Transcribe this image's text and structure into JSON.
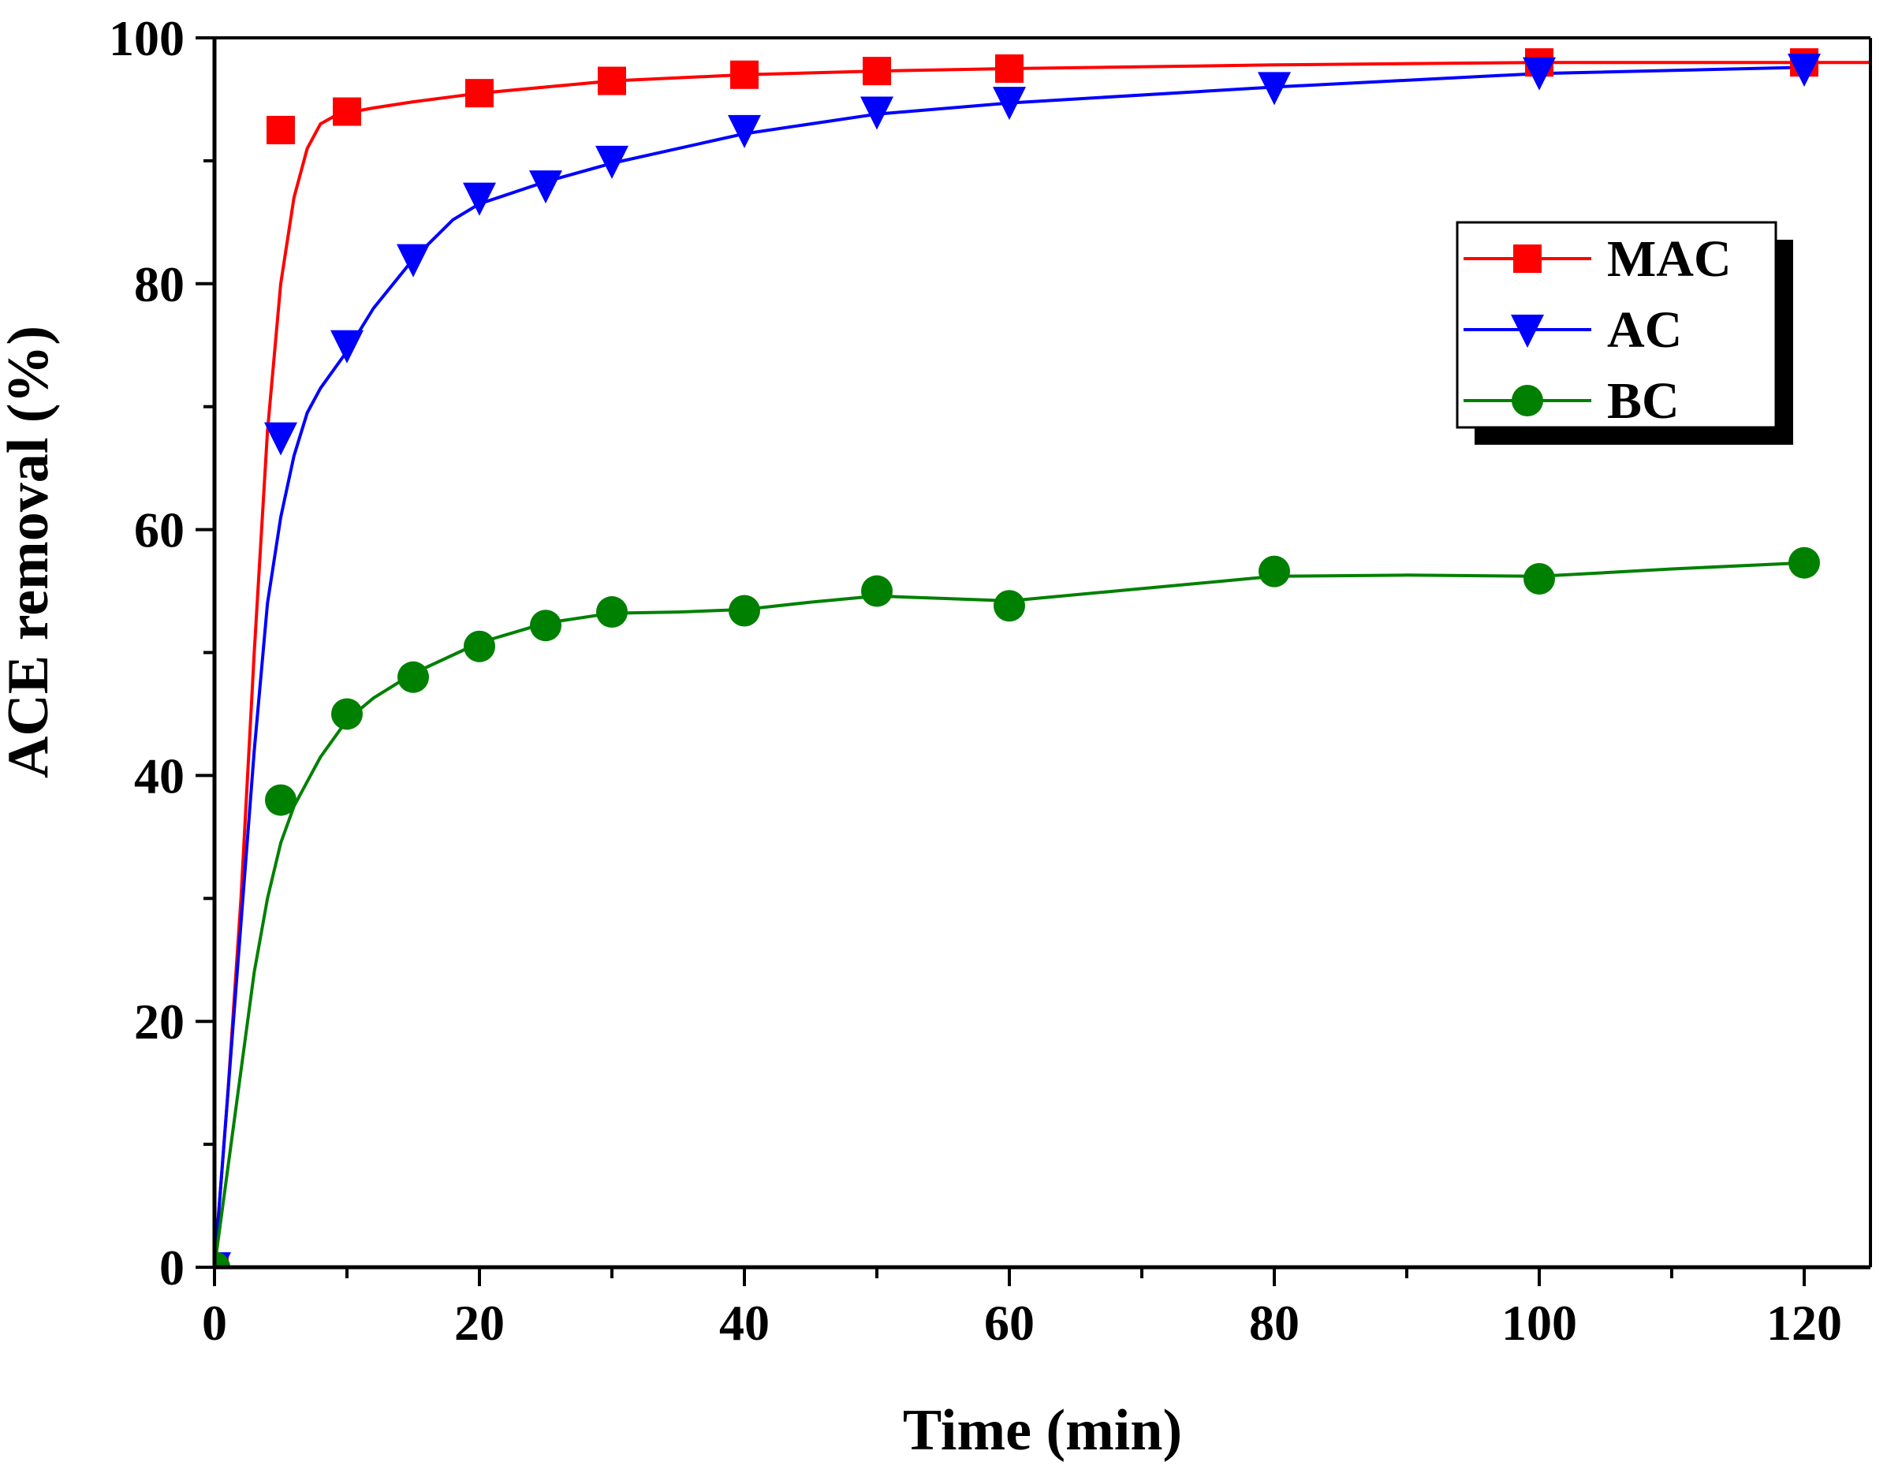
{
  "chart_data": {
    "type": "line",
    "title": "",
    "xlabel": "Time (min)",
    "ylabel": "ACE removal (%)",
    "xlim": [
      0,
      125
    ],
    "ylim": [
      0,
      100
    ],
    "xticks": [
      0,
      20,
      40,
      60,
      80,
      100,
      120
    ],
    "yticks": [
      0,
      20,
      40,
      60,
      80,
      100
    ],
    "grid": false,
    "legend_position": "top-right",
    "series": [
      {
        "name": "MAC",
        "color": "#ff0000",
        "marker": "square",
        "x": [
          0,
          5,
          10,
          20,
          30,
          40,
          50,
          60,
          100,
          120
        ],
        "y": [
          0,
          92.5,
          94,
          95.5,
          96.5,
          97,
          97.3,
          97.5,
          98,
          98
        ],
        "fit_x": [
          0,
          1,
          2,
          3,
          4,
          5,
          6,
          7,
          8,
          9,
          10,
          12,
          15,
          20,
          25,
          30,
          40,
          50,
          60,
          80,
          100,
          120,
          125
        ],
        "fit_y": [
          0,
          14,
          30,
          50,
          68,
          80,
          87,
          91,
          93,
          93.6,
          93.9,
          94.3,
          94.8,
          95.5,
          96.0,
          96.5,
          97.0,
          97.3,
          97.5,
          97.8,
          98.0,
          98.0,
          98.0
        ]
      },
      {
        "name": "AC",
        "color": "#0000ff",
        "marker": "triangle-down",
        "x": [
          0,
          5,
          10,
          15,
          20,
          25,
          30,
          40,
          50,
          60,
          80,
          100,
          120
        ],
        "y": [
          0,
          67.5,
          75,
          82,
          87,
          88,
          90,
          92.5,
          94,
          94.8,
          96,
          97.2,
          97.5
        ],
        "fit_x": [
          0,
          1,
          2,
          3,
          4,
          5,
          6,
          7,
          8,
          10,
          12,
          15,
          18,
          20,
          25,
          30,
          40,
          50,
          60,
          80,
          100,
          120
        ],
        "fit_y": [
          0,
          14,
          28,
          42,
          54,
          61,
          66,
          69.5,
          71.5,
          74.5,
          78,
          82,
          85.2,
          86.5,
          88.3,
          89.8,
          92.2,
          93.8,
          94.7,
          96.0,
          97.1,
          97.6
        ]
      },
      {
        "name": "BC",
        "color": "#008000",
        "marker": "circle",
        "x": [
          0,
          5,
          10,
          15,
          20,
          25,
          30,
          40,
          50,
          60,
          80,
          100,
          120
        ],
        "y": [
          0,
          38,
          45,
          48,
          50.5,
          52.2,
          53.3,
          53.4,
          55,
          53.8,
          56.6,
          56,
          57.3
        ],
        "fit_x": [
          0,
          1,
          2,
          3,
          4,
          5,
          6,
          8,
          10,
          12,
          15,
          20,
          25,
          30,
          35,
          40,
          45,
          50,
          55,
          60,
          70,
          80,
          90,
          100,
          110,
          120
        ],
        "fit_y": [
          0,
          8,
          16,
          24,
          30,
          34.5,
          37.5,
          41.5,
          44.5,
          46.3,
          48.3,
          50.8,
          52.4,
          53.2,
          53.3,
          53.5,
          54.1,
          54.6,
          54.4,
          54.2,
          55.2,
          56.2,
          56.3,
          56.2,
          56.8,
          57.3
        ]
      }
    ]
  }
}
